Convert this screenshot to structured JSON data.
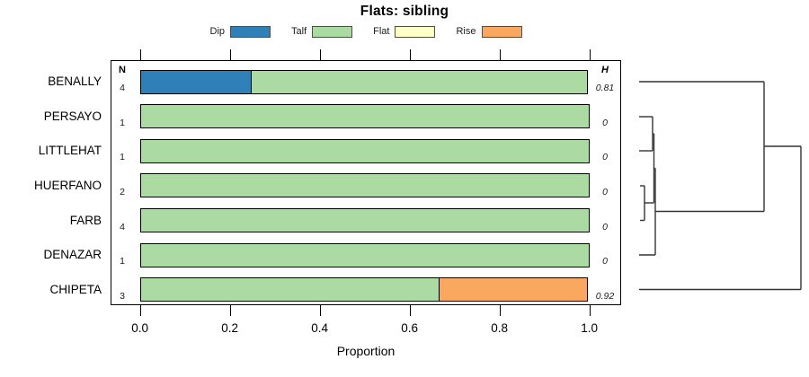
{
  "title": "Flats: sibling",
  "legend": {
    "items": [
      {
        "label": "Dip",
        "color": "#2f80b9"
      },
      {
        "label": "Talf",
        "color": "#abdba2"
      },
      {
        "label": "Flat",
        "color": "#ffffc8"
      },
      {
        "label": "Rise",
        "color": "#faa860"
      }
    ]
  },
  "columns": {
    "n_header": "N",
    "h_header": "H"
  },
  "rows": [
    {
      "label": "BENALLY",
      "n": "4",
      "h": "0.81"
    },
    {
      "label": "PERSAYO",
      "n": "1",
      "h": "0"
    },
    {
      "label": "LITTLEHAT",
      "n": "1",
      "h": "0"
    },
    {
      "label": "HUERFANO",
      "n": "2",
      "h": "0"
    },
    {
      "label": "FARB",
      "n": "4",
      "h": "0"
    },
    {
      "label": "DENAZAR",
      "n": "1",
      "h": "0"
    },
    {
      "label": "CHIPETA",
      "n": "3",
      "h": "0.92"
    }
  ],
  "x_axis": {
    "label": "Proportion",
    "tick_labels": [
      "0.0",
      "0.2",
      "0.4",
      "0.6",
      "0.8",
      "1.0"
    ],
    "tick_values": [
      0,
      0.2,
      0.4,
      0.6,
      0.8,
      1.0
    ]
  },
  "chart_data": {
    "type": "bar",
    "orientation": "horizontal",
    "stacked": true,
    "title": "Flats: sibling",
    "xlabel": "Proportion",
    "xlim": [
      0,
      1
    ],
    "grid": false,
    "legend_position": "top",
    "categories": [
      "BENALLY",
      "PERSAYO",
      "LITTLEHAT",
      "HUERFANO",
      "FARB",
      "DENAZAR",
      "CHIPETA"
    ],
    "n_values": [
      4,
      1,
      1,
      2,
      4,
      1,
      3
    ],
    "H_values": [
      0.81,
      0,
      0,
      0,
      0,
      0,
      0.92
    ],
    "series": [
      {
        "name": "Dip",
        "color": "#2f80b9",
        "values": [
          0.25,
          0,
          0,
          0,
          0,
          0,
          0
        ]
      },
      {
        "name": "Talf",
        "color": "#abdba2",
        "values": [
          0.75,
          1,
          1,
          1,
          1,
          1,
          0.6667
        ]
      },
      {
        "name": "Flat",
        "color": "#ffffc8",
        "values": [
          0,
          0,
          0,
          0,
          0,
          0,
          0
        ]
      },
      {
        "name": "Rise",
        "color": "#faa860",
        "values": [
          0,
          0,
          0,
          0,
          0,
          0,
          0.3333
        ]
      }
    ],
    "dendrogram": {
      "description": "hierarchical clustering of the seven sites, drawn to the right of the bars",
      "line_color": "#333333",
      "segments": [
        [
          711,
          91,
          850,
          91
        ],
        [
          711,
          130,
          726,
          130
        ],
        [
          711,
          168,
          726,
          168
        ],
        [
          726,
          130,
          726,
          168
        ],
        [
          726,
          149,
          727.5,
          149
        ],
        [
          712,
          207,
          717,
          207
        ],
        [
          712,
          245.5,
          717,
          245.5
        ],
        [
          717,
          207,
          717,
          245.5
        ],
        [
          717,
          226,
          727.5,
          226
        ],
        [
          727.5,
          149,
          727.5,
          226
        ],
        [
          727.5,
          187.5,
          729,
          187.5
        ],
        [
          711,
          284,
          729,
          284
        ],
        [
          729,
          187.5,
          729,
          284
        ],
        [
          729,
          235.5,
          850,
          235.5
        ],
        [
          850,
          91,
          850,
          235.5
        ],
        [
          850,
          163,
          891,
          163
        ],
        [
          891,
          163,
          891,
          322.5
        ],
        [
          711,
          322.5,
          891,
          322.5
        ]
      ]
    }
  }
}
